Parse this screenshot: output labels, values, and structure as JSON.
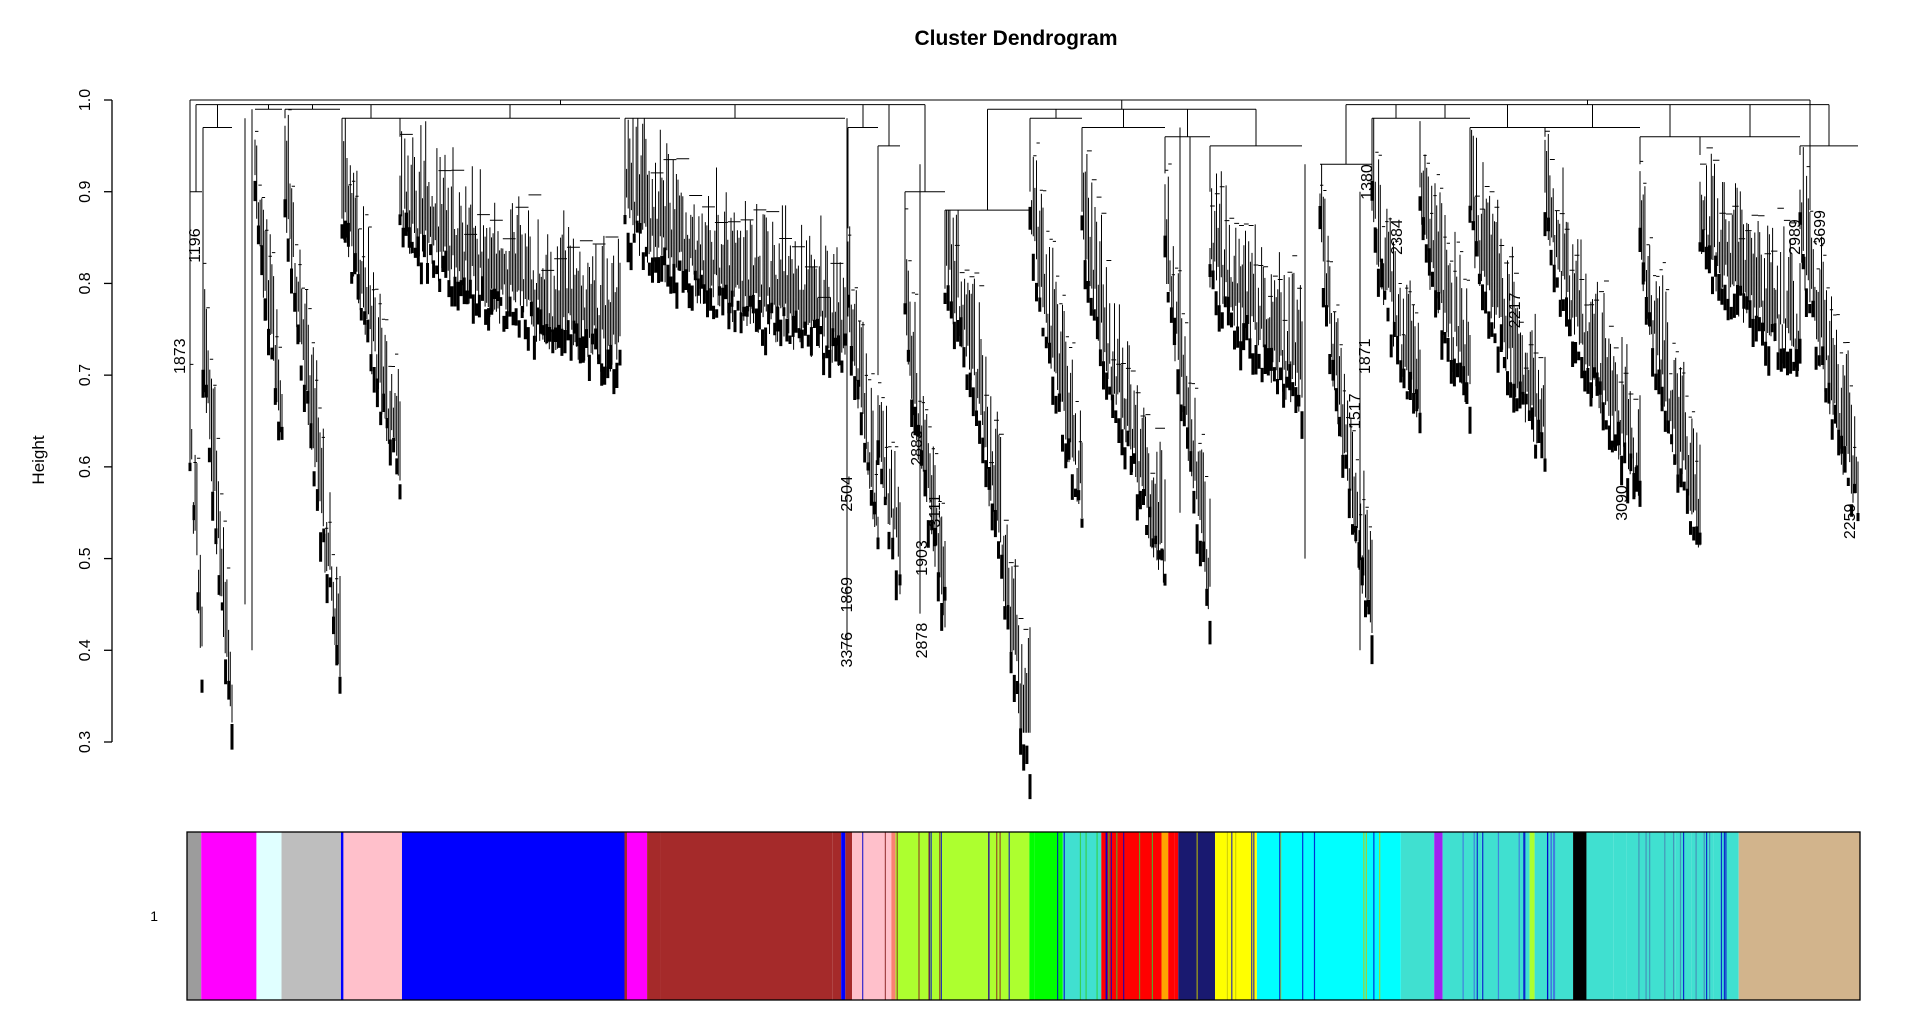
{
  "chart_data": {
    "type": "dendrogram",
    "title": "Cluster Dendrogram",
    "ylabel": "Height",
    "xlabel": "",
    "ylim": [
      0.3,
      1.0
    ],
    "yticks": [
      "0.3",
      "0.4",
      "0.5",
      "0.6",
      "0.7",
      "0.8",
      "0.9",
      "1.0"
    ],
    "grid": false,
    "color_row_label": "1",
    "leaf_label_samples": [
      "1196",
      "1873",
      "2504",
      "2883",
      "1903",
      "3111",
      "3376",
      "1869",
      "2878",
      "2217",
      "1871",
      "1380",
      "1517",
      "2384",
      "3699",
      "3090",
      "2259",
      "2989"
    ],
    "color_track_fractions": [
      0,
      0.0085,
      0.0415,
      0.0565,
      0.092,
      0.0935,
      0.1285,
      0.2615,
      0.263,
      0.275,
      0.283,
      0.386,
      0.391,
      0.3935,
      0.3975,
      0.421,
      0.4235,
      0.5035,
      0.5065,
      0.5235,
      0.5465,
      0.5825,
      0.5865,
      0.5905,
      0.5925,
      0.6145,
      0.6215,
      0.6395,
      0.7255,
      0.7455,
      0.7505,
      0.7735,
      0.8025,
      0.8055,
      0.8285,
      0.8365,
      0.8525,
      0.8605,
      0.8895,
      0.8995,
      0.9095,
      0.9125,
      0.9275,
      1
    ],
    "color_track": [
      "#9c9c9c",
      "#ff00ff",
      "#e0ffff",
      "#bebebe",
      "#0000ff",
      "#ffc0cb",
      "#0000ff",
      "#a52a2a",
      "#ff00ff",
      "#a52a2a",
      "#a52a2a",
      "#a52a2a",
      "#0000ff",
      "#a52a2a",
      "#ffc0cb",
      "#fa8072",
      "#adff2f",
      "#00ff00",
      "#00ff00",
      "#40e0d0",
      "#ff0000",
      "#ffa500",
      "#ff0000",
      "#ff0000",
      "#191970",
      "#ffff00",
      "#ffff00",
      "#00ffff",
      "#40e0d0",
      "#a020f0",
      "#40e0d0",
      "#40e0d0",
      "#adff2f",
      "#40e0d0",
      "#000000",
      "#40e0d0",
      "#40e0d0",
      "#40e0d0",
      "#40e0d0",
      "#40e0d0",
      "#40e0d0",
      "#40e0d0",
      "#d2b48c"
    ]
  }
}
